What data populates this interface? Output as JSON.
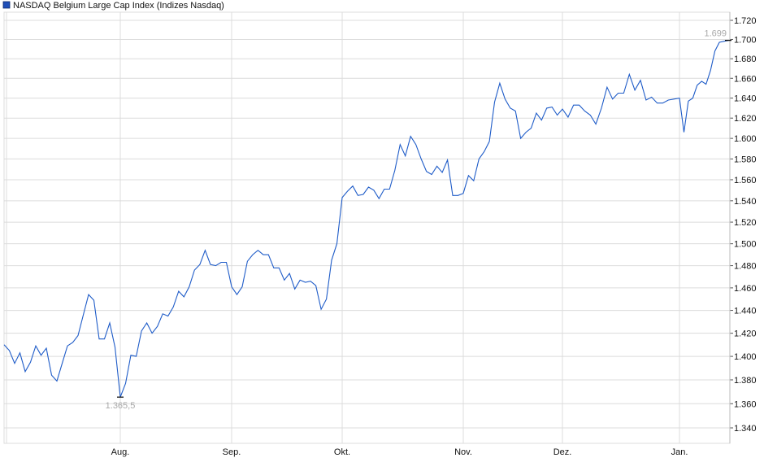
{
  "chart_data": {
    "type": "line",
    "legend": {
      "label": "NASDAQ Belgium Large Cap Index  (Indizes Nasdaq)",
      "placement": "top-left"
    },
    "y_scale": "log",
    "ylim": [
      1.332,
      1.728
    ],
    "y_ticks": [
      "1.720",
      "1.700",
      "1.680",
      "1.660",
      "1.640",
      "1.620",
      "1.600",
      "1.580",
      "1.560",
      "1.540",
      "1.520",
      "1.500",
      "1.480",
      "1.460",
      "1.440",
      "1.420",
      "1.400",
      "1.380",
      "1.360",
      "1.340"
    ],
    "y_tick_values": [
      1.72,
      1.7,
      1.68,
      1.66,
      1.64,
      1.62,
      1.6,
      1.58,
      1.56,
      1.54,
      1.52,
      1.5,
      1.48,
      1.46,
      1.44,
      1.42,
      1.4,
      1.38,
      1.36,
      1.34
    ],
    "x_ticks": [
      "Aug.",
      "Sep.",
      "Okt.",
      "Nov.",
      "Dez.",
      "Jan."
    ],
    "grid": true,
    "colors": {
      "line": "#1f5cc8",
      "legend_box": "#1f4fb8",
      "grid": "#dcdcdc",
      "annotation": "#a9a9a9"
    },
    "series": [
      {
        "name": "NASDAQ Belgium Large Cap Index",
        "values": [
          1.41,
          1.405,
          1.394,
          1.403,
          1.387,
          1.395,
          1.409,
          1.401,
          1.407,
          1.384,
          1.379,
          1.394,
          1.409,
          1.412,
          1.418,
          1.436,
          1.454,
          1.449,
          1.415,
          1.415,
          1.429,
          1.408,
          1.3655,
          1.377,
          1.401,
          1.4,
          1.422,
          1.429,
          1.42,
          1.426,
          1.437,
          1.435,
          1.443,
          1.457,
          1.452,
          1.461,
          1.476,
          1.481,
          1.494,
          1.481,
          1.48,
          1.483,
          1.483,
          1.461,
          1.454,
          1.461,
          1.484,
          1.49,
          1.494,
          1.49,
          1.49,
          1.478,
          1.478,
          1.467,
          1.473,
          1.459,
          1.467,
          1.465,
          1.466,
          1.462,
          1.441,
          1.45,
          1.485,
          1.5,
          1.543,
          1.549,
          1.554,
          1.545,
          1.546,
          1.553,
          1.55,
          1.542,
          1.551,
          1.551,
          1.569,
          1.594,
          1.583,
          1.602,
          1.594,
          1.58,
          1.568,
          1.565,
          1.573,
          1.567,
          1.579,
          1.545,
          1.545,
          1.547,
          1.564,
          1.559,
          1.58,
          1.587,
          1.597,
          1.636,
          1.655,
          1.639,
          1.63,
          1.627,
          1.6,
          1.606,
          1.61,
          1.625,
          1.618,
          1.63,
          1.631,
          1.623,
          1.629,
          1.621,
          1.633,
          1.633,
          1.627,
          1.623,
          1.614,
          1.63,
          1.651,
          1.639,
          1.645,
          1.645,
          1.664,
          1.648,
          1.658,
          1.638,
          1.641,
          1.635,
          1.635,
          1.638,
          1.639,
          1.64,
          1.606,
          1.637,
          1.64,
          1.653,
          1.657,
          1.654,
          1.668,
          1.688,
          1.697,
          1.698,
          1.699
        ]
      }
    ],
    "annotations": {
      "min_label": "1.365,5",
      "min_value": 1.3655,
      "max_label": "1.699",
      "last_value": 1.699
    }
  }
}
